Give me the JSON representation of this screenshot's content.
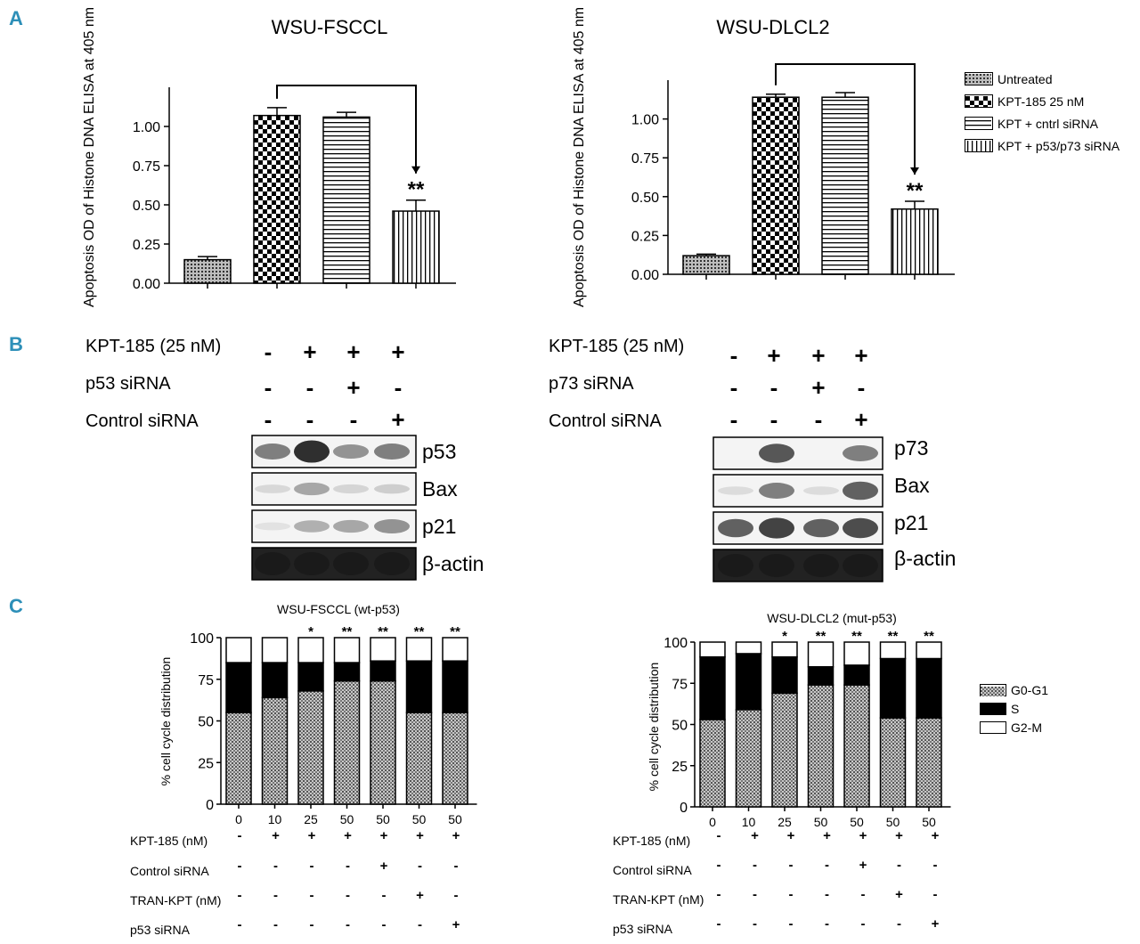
{
  "panels": {
    "a": "A",
    "b": "B",
    "c": "C"
  },
  "chart_data": [
    {
      "type": "bar",
      "title": "WSU-FSCCL",
      "ylabel": "Apoptosis OD of Histone DNA ELISA at 405 nm",
      "ylim": [
        0,
        1.25
      ],
      "yticks": [
        "0.00",
        "0.25",
        "0.50",
        "0.75",
        "1.00"
      ],
      "categories": [
        "Untreated",
        "KPT-185 25 nM",
        "KPT + cntrl siRNA",
        "KPT + p53/p73 siRNA"
      ],
      "values": [
        0.15,
        1.07,
        1.06,
        0.46
      ],
      "errors": [
        0.02,
        0.05,
        0.03,
        0.07
      ],
      "annotations": [
        "",
        "",
        "",
        "**"
      ],
      "bracket": [
        1,
        3
      ]
    },
    {
      "type": "bar",
      "title": "WSU-DLCL2",
      "ylabel": "Apoptosis OD of Histone DNA ELISA at 405 nm",
      "ylim": [
        0,
        1.25
      ],
      "yticks": [
        "0.00",
        "0.25",
        "0.50",
        "0.75",
        "1.00"
      ],
      "categories": [
        "Untreated",
        "KPT-185 25 nM",
        "KPT + cntrl siRNA",
        "KPT + p53/p73 siRNA"
      ],
      "values": [
        0.12,
        1.14,
        1.14,
        0.42
      ],
      "errors": [
        0.01,
        0.02,
        0.03,
        0.05
      ],
      "annotations": [
        "",
        "",
        "",
        "**"
      ],
      "bracket": [
        1,
        3
      ],
      "legend": [
        "Untreated",
        "KPT-185 25 nM",
        "KPT + cntrl siRNA",
        "KPT + p53/p73 siRNA"
      ]
    },
    {
      "type": "bar",
      "stacked": true,
      "title": "WSU-FSCCL (wt-p53)",
      "ylabel": "% cell cycle distribution",
      "ylim": [
        0,
        100
      ],
      "yticks": [
        "0",
        "25",
        "50",
        "75",
        "100"
      ],
      "categories": [
        "0",
        "10",
        "25",
        "50",
        "50",
        "50",
        "50"
      ],
      "series": [
        {
          "name": "G0-G1",
          "values": [
            55,
            64,
            68,
            74,
            74,
            55,
            55
          ]
        },
        {
          "name": "S",
          "values": [
            30,
            21,
            17,
            11,
            12,
            31,
            31
          ]
        },
        {
          "name": "G2-M",
          "values": [
            15,
            15,
            15,
            15,
            14,
            14,
            14
          ]
        }
      ],
      "annotations": [
        "",
        "",
        "*",
        "**",
        "**",
        "**",
        "**"
      ]
    },
    {
      "type": "bar",
      "stacked": true,
      "title": "WSU-DLCL2 (mut-p53)",
      "ylabel": "% cell cycle distribution",
      "ylim": [
        0,
        100
      ],
      "yticks": [
        "0",
        "25",
        "50",
        "75",
        "100"
      ],
      "categories": [
        "0",
        "10",
        "25",
        "50",
        "50",
        "50",
        "50"
      ],
      "series": [
        {
          "name": "G0-G1",
          "values": [
            53,
            59,
            69,
            74,
            74,
            54,
            54
          ]
        },
        {
          "name": "S",
          "values": [
            38,
            34,
            22,
            11,
            12,
            36,
            36
          ]
        },
        {
          "name": "G2-M",
          "values": [
            9,
            7,
            9,
            15,
            14,
            10,
            10
          ]
        }
      ],
      "annotations": [
        "",
        "",
        "*",
        "**",
        "**",
        "**",
        "**"
      ],
      "legend": [
        "G0-G1",
        "S",
        "G2-M"
      ]
    }
  ],
  "blots": [
    {
      "rows": [
        {
          "label": "KPT-185 (25 nM)",
          "signs": [
            "-",
            "+",
            "+",
            "+"
          ]
        },
        {
          "label": "p53 siRNA",
          "signs": [
            "-",
            "-",
            "+",
            "-"
          ]
        },
        {
          "label": "Control siRNA",
          "signs": [
            "-",
            "-",
            "-",
            "+"
          ]
        }
      ],
      "bands": [
        {
          "label": "p53",
          "intensity": [
            0.55,
            0.95,
            0.45,
            0.55
          ]
        },
        {
          "label": "Bax",
          "intensity": [
            0.1,
            0.35,
            0.12,
            0.15
          ]
        },
        {
          "label": "p21",
          "intensity": [
            0.05,
            0.3,
            0.35,
            0.45
          ]
        },
        {
          "label": "β-actin",
          "intensity": [
            0.95,
            0.95,
            0.95,
            0.95
          ]
        }
      ]
    },
    {
      "rows": [
        {
          "label": "KPT-185 (25 nM)",
          "signs": [
            "-",
            "+",
            "+",
            "+"
          ]
        },
        {
          "label": "p73 siRNA",
          "signs": [
            "-",
            "-",
            "+",
            "-"
          ]
        },
        {
          "label": "Control siRNA",
          "signs": [
            "-",
            "-",
            "-",
            "+"
          ]
        }
      ],
      "bands": [
        {
          "label": "p73",
          "intensity": [
            0.02,
            0.75,
            0.02,
            0.55
          ]
        },
        {
          "label": "Bax",
          "intensity": [
            0.08,
            0.55,
            0.08,
            0.7
          ]
        },
        {
          "label": "p21",
          "intensity": [
            0.7,
            0.85,
            0.7,
            0.8
          ]
        },
        {
          "label": "β-actin",
          "intensity": [
            0.95,
            0.95,
            0.95,
            0.95
          ]
        }
      ]
    }
  ],
  "condition_tables": [
    {
      "rows": [
        {
          "label": "KPT-185 (nM)",
          "signs": [
            "-",
            "+",
            "+",
            "+",
            "+",
            "+",
            "+"
          ]
        },
        {
          "label": "Control siRNA",
          "signs": [
            "-",
            "-",
            "-",
            "-",
            "+",
            "-",
            "-"
          ]
        },
        {
          "label": "TRAN-KPT (nM)",
          "signs": [
            "-",
            "-",
            "-",
            "-",
            "-",
            "+",
            "-"
          ]
        },
        {
          "label": "p53 siRNA",
          "signs": [
            "-",
            "-",
            "-",
            "-",
            "-",
            "-",
            "+"
          ]
        }
      ]
    },
    {
      "rows": [
        {
          "label": "KPT-185 (nM)",
          "signs": [
            "-",
            "+",
            "+",
            "+",
            "+",
            "+",
            "+"
          ]
        },
        {
          "label": "Control siRNA",
          "signs": [
            "-",
            "-",
            "-",
            "-",
            "+",
            "-",
            "-"
          ]
        },
        {
          "label": "TRAN-KPT (nM)",
          "signs": [
            "-",
            "-",
            "-",
            "-",
            "-",
            "+",
            "-"
          ]
        },
        {
          "label": "p53 siRNA",
          "signs": [
            "-",
            "-",
            "-",
            "-",
            "-",
            "-",
            "+"
          ]
        }
      ]
    }
  ]
}
